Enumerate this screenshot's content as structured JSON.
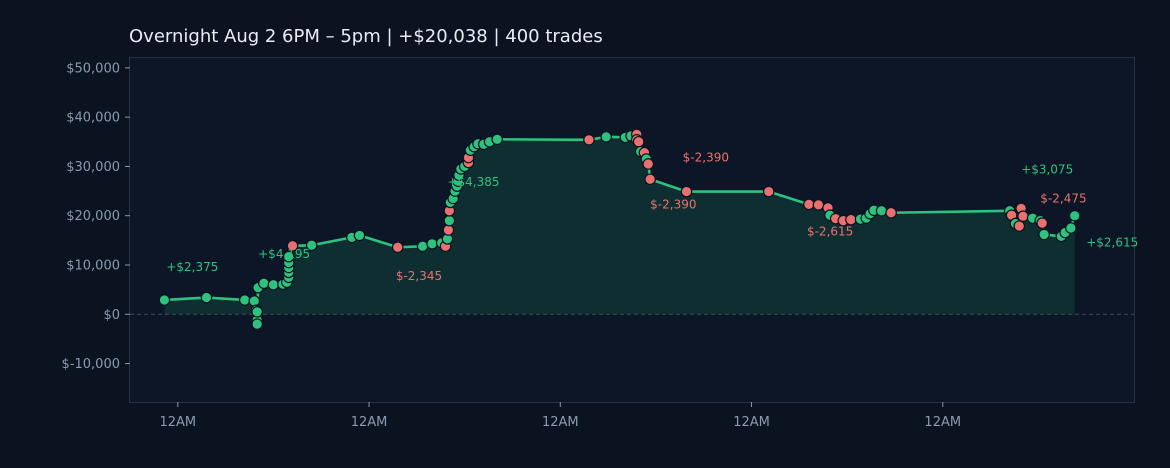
{
  "chart_data": {
    "type": "line",
    "title": "Overnight  Aug 2 6PM – 5pm  |  +$20,038  |  400 trades",
    "xlabel": "",
    "ylabel": "",
    "ylim": [
      -17800,
      52000
    ],
    "xlim": [
      -0.25,
      5.0
    ],
    "y_ticks": [
      -10000,
      0,
      10000,
      20000,
      30000,
      40000,
      50000
    ],
    "y_tick_labels": [
      "$-10,000",
      "$0",
      "$10,000",
      "$20,000",
      "$30,000",
      "$40,000",
      "$50,000"
    ],
    "x_ticks": [
      0,
      1,
      2,
      3,
      4
    ],
    "x_tick_labels": [
      "12AM",
      "12AM",
      "12AM",
      "12AM",
      "12AM"
    ],
    "grid": false,
    "zero_line": true,
    "colors": {
      "background": "#0b1220",
      "plot_bg": "#0c1626",
      "frame": "#233247",
      "line": "#2ec27e",
      "fill": "#0f2e31",
      "win": "#2ec27e",
      "loss": "#e8716f",
      "marker_edge": "#0b1220",
      "zero_line": "#3b4d63"
    },
    "series": [
      {
        "values": [
          {
            "x": -0.07,
            "y": 2900,
            "r": "win"
          },
          {
            "x": 0.15,
            "y": 3400,
            "r": "win"
          },
          {
            "x": 0.35,
            "y": 2900,
            "r": "win"
          },
          {
            "x": 0.4,
            "y": 2700,
            "r": "win"
          },
          {
            "x": 0.41,
            "y": 800,
            "r": "win"
          },
          {
            "x": 0.415,
            "y": -500,
            "r": "win"
          },
          {
            "x": 0.415,
            "y": -1200,
            "r": "win"
          },
          {
            "x": 0.415,
            "y": -2000,
            "r": "win"
          },
          {
            "x": 0.415,
            "y": 500,
            "r": "win"
          },
          {
            "x": 0.42,
            "y": 5400,
            "r": "win"
          },
          {
            "x": 0.45,
            "y": 6300,
            "r": "win"
          },
          {
            "x": 0.5,
            "y": 6000,
            "r": "win"
          },
          {
            "x": 0.55,
            "y": 6100,
            "r": "win"
          },
          {
            "x": 0.57,
            "y": 6500,
            "r": "win"
          },
          {
            "x": 0.58,
            "y": 7500,
            "r": "win"
          },
          {
            "x": 0.58,
            "y": 8500,
            "r": "win"
          },
          {
            "x": 0.58,
            "y": 9500,
            "r": "win"
          },
          {
            "x": 0.58,
            "y": 10500,
            "r": "win"
          },
          {
            "x": 0.58,
            "y": 11700,
            "r": "win"
          },
          {
            "x": 0.6,
            "y": 13900,
            "r": "loss"
          },
          {
            "x": 0.7,
            "y": 14000,
            "r": "win"
          },
          {
            "x": 0.91,
            "y": 15600,
            "r": "win"
          },
          {
            "x": 0.95,
            "y": 16000,
            "r": "win"
          },
          {
            "x": 1.15,
            "y": 13600,
            "r": "loss"
          },
          {
            "x": 1.28,
            "y": 13800,
            "r": "win"
          },
          {
            "x": 1.33,
            "y": 14300,
            "r": "win"
          },
          {
            "x": 1.38,
            "y": 14500,
            "r": "win"
          },
          {
            "x": 1.4,
            "y": 13800,
            "r": "loss"
          },
          {
            "x": 1.41,
            "y": 15300,
            "r": "win"
          },
          {
            "x": 1.415,
            "y": 17100,
            "r": "loss"
          },
          {
            "x": 1.42,
            "y": 19000,
            "r": "win"
          },
          {
            "x": 1.42,
            "y": 21000,
            "r": "loss"
          },
          {
            "x": 1.425,
            "y": 22700,
            "r": "win"
          },
          {
            "x": 1.44,
            "y": 23500,
            "r": "win"
          },
          {
            "x": 1.45,
            "y": 25000,
            "r": "win"
          },
          {
            "x": 1.46,
            "y": 26000,
            "r": "win"
          },
          {
            "x": 1.465,
            "y": 27000,
            "r": "win"
          },
          {
            "x": 1.47,
            "y": 28200,
            "r": "win"
          },
          {
            "x": 1.48,
            "y": 29500,
            "r": "win"
          },
          {
            "x": 1.5,
            "y": 30000,
            "r": "win"
          },
          {
            "x": 1.52,
            "y": 30800,
            "r": "loss"
          },
          {
            "x": 1.52,
            "y": 31800,
            "r": "loss"
          },
          {
            "x": 1.53,
            "y": 33300,
            "r": "win"
          },
          {
            "x": 1.55,
            "y": 34000,
            "r": "win"
          },
          {
            "x": 1.57,
            "y": 34600,
            "r": "win"
          },
          {
            "x": 1.6,
            "y": 34500,
            "r": "win"
          },
          {
            "x": 1.63,
            "y": 35000,
            "r": "win"
          },
          {
            "x": 1.67,
            "y": 35500,
            "r": "win"
          },
          {
            "x": 2.15,
            "y": 35400,
            "r": "loss"
          },
          {
            "x": 2.24,
            "y": 36000,
            "r": "win"
          },
          {
            "x": 2.34,
            "y": 35900,
            "r": "win"
          },
          {
            "x": 2.37,
            "y": 36200,
            "r": "win"
          },
          {
            "x": 2.4,
            "y": 36500,
            "r": "loss"
          },
          {
            "x": 2.4,
            "y": 35400,
            "r": "loss"
          },
          {
            "x": 2.41,
            "y": 35000,
            "r": "loss"
          },
          {
            "x": 2.42,
            "y": 33000,
            "r": "win"
          },
          {
            "x": 2.44,
            "y": 32800,
            "r": "loss"
          },
          {
            "x": 2.45,
            "y": 31500,
            "r": "win"
          },
          {
            "x": 2.46,
            "y": 30500,
            "r": "loss"
          },
          {
            "x": 2.47,
            "y": 27400,
            "r": "loss"
          },
          {
            "x": 2.66,
            "y": 24900,
            "r": "loss"
          },
          {
            "x": 3.09,
            "y": 24900,
            "r": "loss"
          },
          {
            "x": 3.3,
            "y": 22300,
            "r": "loss"
          },
          {
            "x": 3.35,
            "y": 22200,
            "r": "loss"
          },
          {
            "x": 3.4,
            "y": 21600,
            "r": "loss"
          },
          {
            "x": 3.41,
            "y": 20100,
            "r": "win"
          },
          {
            "x": 3.44,
            "y": 19400,
            "r": "loss"
          },
          {
            "x": 3.48,
            "y": 19000,
            "r": "loss"
          },
          {
            "x": 3.52,
            "y": 19200,
            "r": "loss"
          },
          {
            "x": 3.57,
            "y": 19300,
            "r": "win"
          },
          {
            "x": 3.6,
            "y": 19500,
            "r": "win"
          },
          {
            "x": 3.62,
            "y": 20400,
            "r": "win"
          },
          {
            "x": 3.64,
            "y": 21100,
            "r": "win"
          },
          {
            "x": 3.68,
            "y": 21000,
            "r": "win"
          },
          {
            "x": 3.73,
            "y": 20600,
            "r": "loss"
          },
          {
            "x": 4.35,
            "y": 21000,
            "r": "win"
          },
          {
            "x": 4.36,
            "y": 20100,
            "r": "loss"
          },
          {
            "x": 4.38,
            "y": 18400,
            "r": "win"
          },
          {
            "x": 4.4,
            "y": 17900,
            "r": "loss"
          },
          {
            "x": 4.41,
            "y": 21500,
            "r": "loss"
          },
          {
            "x": 4.42,
            "y": 19900,
            "r": "loss"
          },
          {
            "x": 4.47,
            "y": 19500,
            "r": "win"
          },
          {
            "x": 4.51,
            "y": 19000,
            "r": "win"
          },
          {
            "x": 4.52,
            "y": 18500,
            "r": "loss"
          },
          {
            "x": 4.53,
            "y": 16200,
            "r": "win"
          },
          {
            "x": 4.62,
            "y": 15800,
            "r": "win"
          },
          {
            "x": 4.64,
            "y": 16600,
            "r": "win"
          },
          {
            "x": 4.67,
            "y": 17500,
            "r": "win"
          },
          {
            "x": 4.69,
            "y": 20000,
            "r": "win"
          }
        ]
      }
    ],
    "annotations": [
      {
        "text": "+$2,375",
        "x": -0.06,
        "y": 8800,
        "color": "win"
      },
      {
        "text": "+$4,195",
        "x": 0.42,
        "y": 11400,
        "color": "win"
      },
      {
        "text": "$-2,345",
        "x": 1.14,
        "y": 7000,
        "color": "loss"
      },
      {
        "text": "+$4,385",
        "x": 1.41,
        "y": 26000,
        "color": "win"
      },
      {
        "text": "$-2,390",
        "x": 2.64,
        "y": 31000,
        "color": "loss"
      },
      {
        "text": "$-2,390",
        "x": 2.47,
        "y": 21500,
        "color": "loss"
      },
      {
        "text": "$-2,615",
        "x": 3.29,
        "y": 16000,
        "color": "loss"
      },
      {
        "text": "+$3,075",
        "x": 4.41,
        "y": 28600,
        "color": "win"
      },
      {
        "text": "$-2,475",
        "x": 4.51,
        "y": 22700,
        "color": "loss"
      },
      {
        "text": "+$2,615",
        "x": 4.75,
        "y": 13800,
        "color": "win"
      }
    ]
  }
}
